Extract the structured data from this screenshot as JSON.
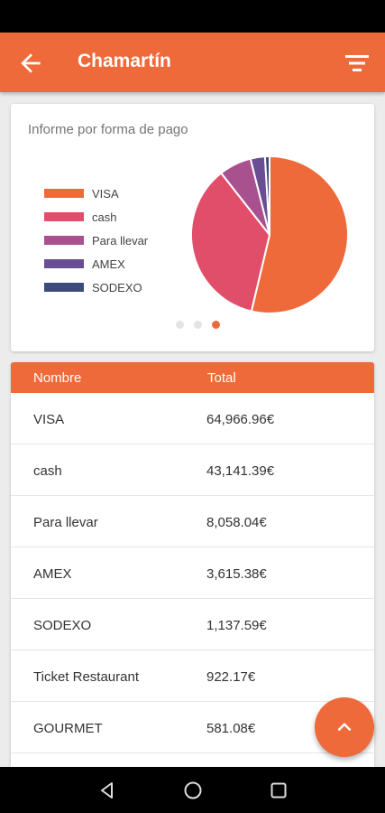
{
  "header": {
    "title": "Chamartín",
    "back_icon": "arrow-left-icon",
    "filter_icon": "filter-icon"
  },
  "chart_card": {
    "title": "Informe por forma de pago",
    "pager": {
      "pages": 3,
      "active": 3
    }
  },
  "chart_data": {
    "type": "pie",
    "title": "Informe por forma de pago",
    "legend_position": "left",
    "slices": [
      {
        "label": "VISA",
        "value": 64966.96,
        "color": "#ee6a3a"
      },
      {
        "label": "cash",
        "value": 43141.39,
        "color": "#e04e6a"
      },
      {
        "label": "Para llevar",
        "value": 8058.04,
        "color": "#a9508e"
      },
      {
        "label": "AMEX",
        "value": 3615.38,
        "color": "#6a4e94"
      },
      {
        "label": "SODEXO",
        "value": 1137.59,
        "color": "#3d4a7c"
      }
    ]
  },
  "table": {
    "columns": [
      "Nombre",
      "Total"
    ],
    "rows": [
      {
        "name": "VISA",
        "total": "64,966.96€"
      },
      {
        "name": "cash",
        "total": "43,141.39€"
      },
      {
        "name": "Para llevar",
        "total": "8,058.04€"
      },
      {
        "name": "AMEX",
        "total": "3,615.38€"
      },
      {
        "name": "SODEXO",
        "total": "1,137.59€"
      },
      {
        "name": "Ticket Restaurant",
        "total": "922.17€"
      },
      {
        "name": "GOURMET",
        "total": "581.08€"
      },
      {
        "name": "",
        "total": ""
      }
    ]
  },
  "fab": {
    "icon": "chevron-up-icon"
  },
  "colors": {
    "accent": "#ee6a3a"
  }
}
